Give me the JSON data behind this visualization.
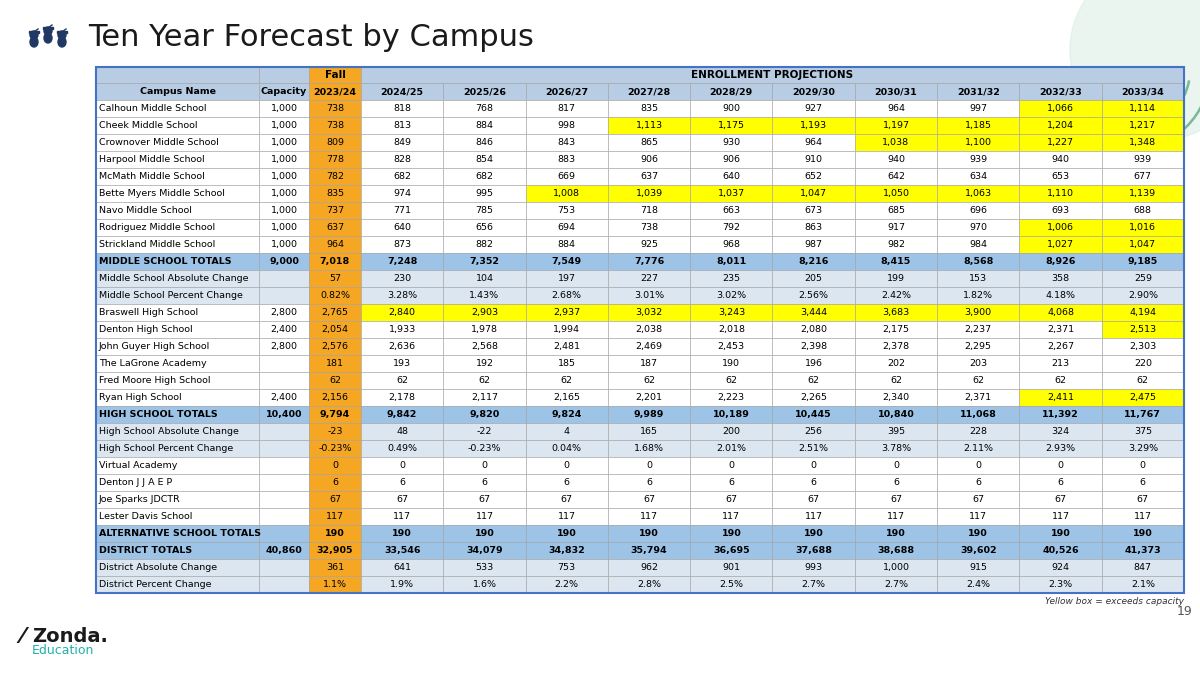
{
  "title": "Ten Year Forecast by Campus",
  "col_labels": [
    "Campus Name",
    "Capacity",
    "2023/24",
    "2024/25",
    "2025/26",
    "2026/27",
    "2027/28",
    "2028/29",
    "2029/30",
    "2030/31",
    "2031/32",
    "2032/33",
    "2033/34"
  ],
  "rows": [
    [
      "Calhoun Middle School",
      "1,000",
      "738",
      "818",
      "768",
      "817",
      "835",
      "900",
      "927",
      "964",
      "997",
      "1,066",
      "1,114"
    ],
    [
      "Cheek Middle School",
      "1,000",
      "738",
      "813",
      "884",
      "998",
      "1,113",
      "1,175",
      "1,193",
      "1,197",
      "1,185",
      "1,204",
      "1,217"
    ],
    [
      "Crownover Middle School",
      "1,000",
      "809",
      "849",
      "846",
      "843",
      "865",
      "930",
      "964",
      "1,038",
      "1,100",
      "1,227",
      "1,348"
    ],
    [
      "Harpool Middle School",
      "1,000",
      "778",
      "828",
      "854",
      "883",
      "906",
      "906",
      "910",
      "940",
      "939",
      "940",
      "939"
    ],
    [
      "McMath Middle School",
      "1,000",
      "782",
      "682",
      "682",
      "669",
      "637",
      "640",
      "652",
      "642",
      "634",
      "653",
      "677"
    ],
    [
      "Bette Myers Middle School",
      "1,000",
      "835",
      "974",
      "995",
      "1,008",
      "1,039",
      "1,037",
      "1,047",
      "1,050",
      "1,063",
      "1,110",
      "1,139"
    ],
    [
      "Navo Middle School",
      "1,000",
      "737",
      "771",
      "785",
      "753",
      "718",
      "663",
      "673",
      "685",
      "696",
      "693",
      "688"
    ],
    [
      "Rodriguez Middle School",
      "1,000",
      "637",
      "640",
      "656",
      "694",
      "738",
      "792",
      "863",
      "917",
      "970",
      "1,006",
      "1,016"
    ],
    [
      "Strickland Middle School",
      "1,000",
      "964",
      "873",
      "882",
      "884",
      "925",
      "968",
      "987",
      "982",
      "984",
      "1,027",
      "1,047"
    ],
    [
      "MIDDLE SCHOOL TOTALS",
      "9,000",
      "7,018",
      "7,248",
      "7,352",
      "7,549",
      "7,776",
      "8,011",
      "8,216",
      "8,415",
      "8,568",
      "8,926",
      "9,185"
    ],
    [
      "Middle School Absolute Change",
      "",
      "57",
      "230",
      "104",
      "197",
      "227",
      "235",
      "205",
      "199",
      "153",
      "358",
      "259"
    ],
    [
      "Middle School Percent Change",
      "",
      "0.82%",
      "3.28%",
      "1.43%",
      "2.68%",
      "3.01%",
      "3.02%",
      "2.56%",
      "2.42%",
      "1.82%",
      "4.18%",
      "2.90%"
    ],
    [
      "Braswell High School",
      "2,800",
      "2,765",
      "2,840",
      "2,903",
      "2,937",
      "3,032",
      "3,243",
      "3,444",
      "3,683",
      "3,900",
      "4,068",
      "4,194"
    ],
    [
      "Denton High School",
      "2,400",
      "2,054",
      "1,933",
      "1,978",
      "1,994",
      "2,038",
      "2,018",
      "2,080",
      "2,175",
      "2,237",
      "2,371",
      "2,513"
    ],
    [
      "John Guyer High School",
      "2,800",
      "2,576",
      "2,636",
      "2,568",
      "2,481",
      "2,469",
      "2,453",
      "2,398",
      "2,378",
      "2,295",
      "2,267",
      "2,303"
    ],
    [
      "The LaGrone Academy",
      "",
      "181",
      "193",
      "192",
      "185",
      "187",
      "190",
      "196",
      "202",
      "203",
      "213",
      "220"
    ],
    [
      "Fred Moore High School",
      "",
      "62",
      "62",
      "62",
      "62",
      "62",
      "62",
      "62",
      "62",
      "62",
      "62",
      "62"
    ],
    [
      "Ryan High School",
      "2,400",
      "2,156",
      "2,178",
      "2,117",
      "2,165",
      "2,201",
      "2,223",
      "2,265",
      "2,340",
      "2,371",
      "2,411",
      "2,475"
    ],
    [
      "HIGH SCHOOL TOTALS",
      "10,400",
      "9,794",
      "9,842",
      "9,820",
      "9,824",
      "9,989",
      "10,189",
      "10,445",
      "10,840",
      "11,068",
      "11,392",
      "11,767"
    ],
    [
      "High School Absolute Change",
      "",
      "-23",
      "48",
      "-22",
      "4",
      "165",
      "200",
      "256",
      "395",
      "228",
      "324",
      "375"
    ],
    [
      "High School Percent Change",
      "",
      "-0.23%",
      "0.49%",
      "-0.23%",
      "0.04%",
      "1.68%",
      "2.01%",
      "2.51%",
      "3.78%",
      "2.11%",
      "2.93%",
      "3.29%"
    ],
    [
      "Virtual Academy",
      "",
      "0",
      "0",
      "0",
      "0",
      "0",
      "0",
      "0",
      "0",
      "0",
      "0",
      "0"
    ],
    [
      "Denton J J A E P",
      "",
      "6",
      "6",
      "6",
      "6",
      "6",
      "6",
      "6",
      "6",
      "6",
      "6",
      "6"
    ],
    [
      "Joe Sparks JDCTR",
      "",
      "67",
      "67",
      "67",
      "67",
      "67",
      "67",
      "67",
      "67",
      "67",
      "67",
      "67"
    ],
    [
      "Lester Davis School",
      "",
      "117",
      "117",
      "117",
      "117",
      "117",
      "117",
      "117",
      "117",
      "117",
      "117",
      "117"
    ],
    [
      "ALTERNATIVE SCHOOL TOTALS",
      "",
      "190",
      "190",
      "190",
      "190",
      "190",
      "190",
      "190",
      "190",
      "190",
      "190",
      "190"
    ],
    [
      "DISTRICT TOTALS",
      "40,860",
      "32,905",
      "33,546",
      "34,079",
      "34,832",
      "35,794",
      "36,695",
      "37,688",
      "38,688",
      "39,602",
      "40,526",
      "41,373"
    ],
    [
      "District Absolute Change",
      "",
      "361",
      "641",
      "533",
      "753",
      "962",
      "901",
      "993",
      "1,000",
      "915",
      "924",
      "847"
    ],
    [
      "District Percent Change",
      "",
      "1.1%",
      "1.9%",
      "1.6%",
      "2.2%",
      "2.8%",
      "2.5%",
      "2.7%",
      "2.7%",
      "2.4%",
      "2.3%",
      "2.1%"
    ]
  ],
  "capacities": {
    "Calhoun Middle School": 1000,
    "Cheek Middle School": 1000,
    "Crownover Middle School": 1000,
    "Harpool Middle School": 1000,
    "McMath Middle School": 1000,
    "Bette Myers Middle School": 1000,
    "Navo Middle School": 1000,
    "Rodriguez Middle School": 1000,
    "Strickland Middle School": 1000,
    "Braswell High School": 2800,
    "Denton High School": 2400,
    "John Guyer High School": 2800,
    "Ryan High School": 2400
  },
  "bold_rows": [
    9,
    18,
    25,
    26
  ],
  "total_blue_rows": [
    9,
    18,
    25,
    26
  ],
  "light_blue_rows": [
    10,
    11,
    19,
    20,
    27,
    28
  ],
  "header_blue": "#b8cce4",
  "light_blue": "#dce6f1",
  "total_blue": "#9dc3e6",
  "orange_color": "#f5a623",
  "yellow_color": "#ffff00",
  "white": "#ffffff",
  "note": "Yellow box = exceeds capacity",
  "page_num": "19",
  "zonda_color": "#20b2aa"
}
